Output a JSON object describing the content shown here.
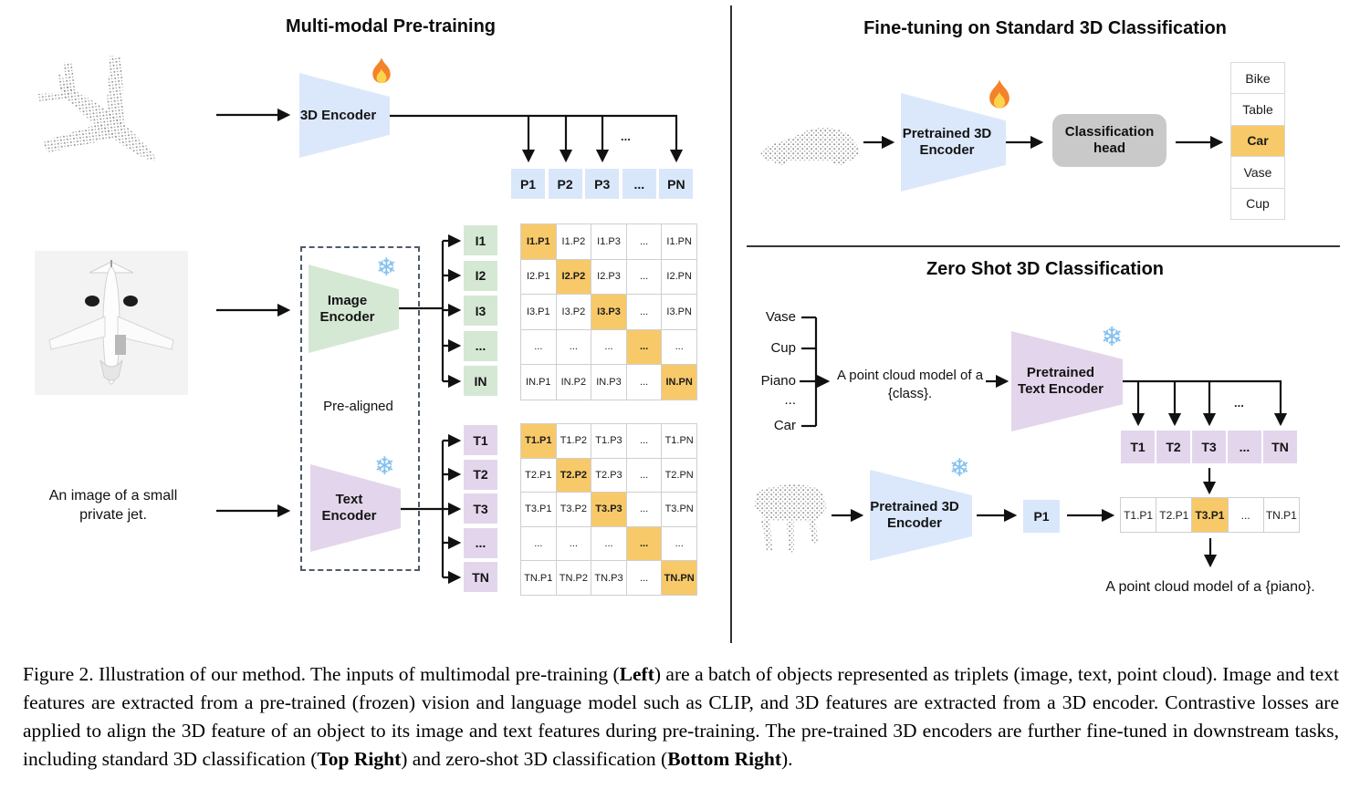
{
  "left_panel": {
    "title": "Multi-modal Pre-training",
    "encoder_3d_label": "3D Encoder",
    "image_encoder_label": "Image Encoder",
    "text_encoder_label": "Text Encoder",
    "pre_aligned_label": "Pre-aligned",
    "text_input": "An image of a small private jet.",
    "ellipsis": "...",
    "p_row": [
      "P1",
      "P2",
      "P3",
      "...",
      "PN"
    ],
    "i_labels": [
      "I1",
      "I2",
      "I3",
      "...",
      "IN"
    ],
    "i_matrix": [
      [
        "I1.P1",
        "I1.P2",
        "I1.P3",
        "...",
        "I1.PN"
      ],
      [
        "I2.P1",
        "I2.P2",
        "I2.P3",
        "...",
        "I2.PN"
      ],
      [
        "I3.P1",
        "I3.P2",
        "I3.P3",
        "...",
        "I3.PN"
      ],
      [
        "...",
        "...",
        "...",
        "...",
        "..."
      ],
      [
        "IN.P1",
        "IN.P2",
        "IN.P3",
        "...",
        "IN.PN"
      ]
    ],
    "t_labels": [
      "T1",
      "T2",
      "T3",
      "...",
      "TN"
    ],
    "t_matrix": [
      [
        "T1.P1",
        "T1.P2",
        "T1.P3",
        "...",
        "T1.PN"
      ],
      [
        "T2.P1",
        "T2.P2",
        "T2.P3",
        "...",
        "T2.PN"
      ],
      [
        "T3.P1",
        "T3.P2",
        "T3.P3",
        "...",
        "T3.PN"
      ],
      [
        "...",
        "...",
        "...",
        "...",
        "..."
      ],
      [
        "TN.P1",
        "TN.P2",
        "TN.P3",
        "...",
        "TN.PN"
      ]
    ]
  },
  "top_right_panel": {
    "title": "Fine-tuning on Standard 3D Classification",
    "encoder_label": "Pretrained 3D Encoder",
    "head_label": "Classification head",
    "classes": [
      "Bike",
      "Table",
      "Car",
      "Vase",
      "Cup"
    ],
    "predicted_class": "Car"
  },
  "bottom_right_panel": {
    "title": "Zero Shot 3D Classification",
    "class_list": [
      "Vase",
      "Cup",
      "Piano",
      "...",
      "Car"
    ],
    "prompt": "A point cloud model of a {class}.",
    "text_encoder_label": "Pretrained Text Encoder",
    "encoder_3d_label": "Pretrained 3D Encoder",
    "ellipsis": "...",
    "t_row": [
      "T1",
      "T2",
      "T3",
      "...",
      "TN"
    ],
    "p_cell": "P1",
    "sim_row": [
      "T1.P1",
      "T2.P1",
      "T3.P1",
      "...",
      "TN.P1"
    ],
    "sim_highlight_index": 2,
    "result_text": "A point cloud model of a {piano}."
  },
  "icons": {
    "trainable": "fire-icon",
    "frozen": "snowflake-icon",
    "snowflake_glyph": "❄"
  },
  "colors": {
    "blue": "#d9e7fb",
    "green": "#d5e8d4",
    "purple": "#e3d6ec",
    "highlight_orange": "#f8c969",
    "head_gray": "#c9c9c9",
    "point_cloud_gray": "#949494"
  },
  "caption": {
    "segments": [
      {
        "text": "Figure 2. Illustration of our method. The inputs of multimodal pre-training (",
        "bold": false
      },
      {
        "text": "Left",
        "bold": true
      },
      {
        "text": ") are a batch of objects represented as triplets (image, text, point cloud).  Image and text features are extracted from a pre-trained (frozen) vision and language model such as CLIP, and 3D features are extracted from a 3D encoder.  Contrastive losses are applied to align the 3D feature of an object to its image and text features during pre-training.  The pre-trained 3D encoders are further fine-tuned in downstream tasks, including standard 3D classification (",
        "bold": false
      },
      {
        "text": "Top Right",
        "bold": true
      },
      {
        "text": ") and zero-shot 3D classification (",
        "bold": false
      },
      {
        "text": "Bottom Right",
        "bold": true
      },
      {
        "text": ").",
        "bold": false
      }
    ]
  }
}
